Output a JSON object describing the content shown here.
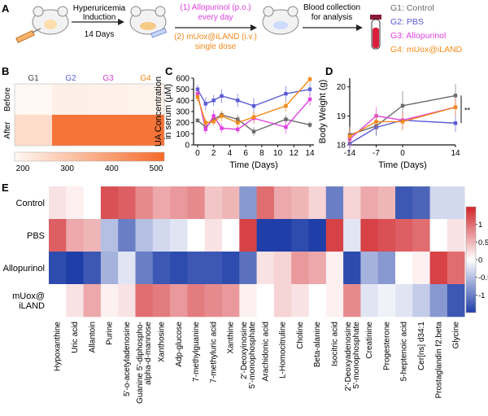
{
  "panel_labels": {
    "a": "A",
    "b": "B",
    "c": "C",
    "d": "D",
    "e": "E"
  },
  "schematic": {
    "step1_line1": "Hyperuricemia",
    "step1_line2": "Induction",
    "step1_days": "14 Days",
    "treat1_line1": "(1) Allopurinol (p.o.)",
    "treat1_line2": "every day",
    "treat2_line1": "(2) mUox@iLAND (i.v.)",
    "treat2_line2": "single dose",
    "blood_line1": "Blood collection",
    "blood_line2": "for analysis",
    "groups": [
      {
        "label": "G1: Control",
        "color": "#6b6b6b"
      },
      {
        "label": "G2: PBS",
        "color": "#5b5bd6"
      },
      {
        "label": "G3: Allopurinol",
        "color": "#e040e0"
      },
      {
        "label": "G4: mUox@iLAND",
        "color": "#f28a1a"
      }
    ],
    "colors": {
      "magenta": "#e040e0",
      "orange": "#f28a1a"
    }
  },
  "chart_data": [
    {
      "panel": "B",
      "type": "heatmap",
      "columns": [
        "G1",
        "G2",
        "G3",
        "G4"
      ],
      "column_colors": [
        "#444444",
        "#5b5bd6",
        "#d13fd1",
        "#f28a1a"
      ],
      "rows": [
        "Before",
        "After"
      ],
      "values": [
        [
          200,
          220,
          215,
          210
        ],
        [
          260,
          480,
          480,
          480
        ]
      ],
      "colorbar": {
        "min": 200,
        "max": 500,
        "ticks": [
          "200",
          "300",
          "400",
          "500"
        ],
        "low_color": "#fff8f3",
        "high_color": "#f56b2a"
      }
    },
    {
      "panel": "C",
      "type": "line",
      "ylabel": "UA Concentration\nin serum (μM)",
      "xlabel": "Time (Days)",
      "xlim": [
        -0.5,
        14.5
      ],
      "ylim": [
        0,
        600
      ],
      "xticks": [
        "0",
        "2",
        "4",
        "6",
        "8",
        "10",
        "12",
        "14"
      ],
      "yticks": [
        "0",
        "100",
        "200",
        "300",
        "400",
        "500",
        "600"
      ],
      "series": [
        {
          "color": "#6b6b6b",
          "x": [
            0,
            1,
            2,
            3,
            5,
            7,
            11,
            14
          ],
          "y": [
            220,
            160,
            230,
            270,
            230,
            120,
            230,
            180
          ],
          "err": [
            20,
            20,
            30,
            30,
            40,
            40,
            40,
            30
          ]
        },
        {
          "color": "#5b5bd6",
          "x": [
            0,
            1,
            2,
            3,
            5,
            7,
            11,
            14
          ],
          "y": [
            500,
            370,
            400,
            440,
            400,
            350,
            460,
            500
          ],
          "err": [
            40,
            60,
            50,
            60,
            60,
            70,
            70,
            60
          ]
        },
        {
          "color": "#e040e0",
          "x": [
            0,
            1,
            2,
            3,
            5,
            7,
            11,
            14
          ],
          "y": [
            460,
            140,
            260,
            150,
            140,
            240,
            160,
            410
          ],
          "err": [
            40,
            40,
            50,
            40,
            40,
            50,
            60,
            60
          ]
        },
        {
          "color": "#f28a1a",
          "x": [
            0,
            1,
            2,
            3,
            5,
            7,
            11,
            14
          ],
          "y": [
            430,
            200,
            210,
            260,
            200,
            250,
            350,
            590
          ],
          "err": [
            40,
            40,
            40,
            50,
            40,
            50,
            50,
            30
          ]
        }
      ]
    },
    {
      "panel": "D",
      "type": "line",
      "ylabel": "Body Weight (g)",
      "xlabel": "Time (Days)",
      "xlim": [
        -14,
        14
      ],
      "ylim": [
        18,
        20.3
      ],
      "xticks": [
        "-14",
        "-7",
        "0",
        "14"
      ],
      "xtick_values": [
        -14,
        -7,
        0,
        14
      ],
      "yticks": [
        "18",
        "19",
        "20"
      ],
      "sig_mark": "**",
      "series": [
        {
          "color": "#6b6b6b",
          "x": [
            -14,
            -7,
            0,
            14
          ],
          "y": [
            18.35,
            18.65,
            19.35,
            19.7
          ],
          "err": [
            0.3,
            0.3,
            0.5,
            0.4
          ]
        },
        {
          "color": "#5b5bd6",
          "x": [
            -14,
            -7,
            0,
            14
          ],
          "y": [
            18.05,
            18.6,
            18.85,
            18.75
          ],
          "err": [
            0.3,
            0.3,
            0.3,
            0.3
          ]
        },
        {
          "color": "#e040e0",
          "x": [
            -14,
            -7,
            0,
            14
          ],
          "y": [
            18.2,
            19.0,
            18.85,
            19.3
          ],
          "err": [
            0.3,
            0.3,
            0.3,
            0.3
          ]
        },
        {
          "color": "#f28a1a",
          "x": [
            -14,
            -7,
            0,
            14
          ],
          "y": [
            18.3,
            18.8,
            18.8,
            19.3
          ],
          "err": [
            0.3,
            0.3,
            0.3,
            0.3
          ]
        }
      ]
    },
    {
      "panel": "E",
      "type": "heatmap",
      "rows": [
        "Control",
        "PBS",
        "Allopurinol",
        "mUox@\niLAND"
      ],
      "columns": [
        "Hypoxanthine",
        "Uric acid",
        "Allantoin",
        "Purine",
        "5'-o-acetyladenosine",
        "Guanine 5'-diphospho-\nalpha-d-mannose",
        "Xanthosine",
        "Adp-glucose",
        "7-methylguanine",
        "7-methyluric acid",
        "Xanthine",
        "2'-Deoxyinosine\n5'-monophosphate",
        "Arachidonic acid",
        "L-Homocitruline",
        "Choline",
        "Beta-alanine",
        "Isocitric acid",
        "2'-Deoxyadenosine\n5'-monophosphate",
        "Creatinine",
        "Progesterone",
        "5-heptenoic acid",
        "Cer[ns] d34:1",
        "Prostaglandin f2.beta",
        "Glycine"
      ],
      "values": [
        [
          0.2,
          0.1,
          0.0,
          1.2,
          1.1,
          0.8,
          0.6,
          0.7,
          0.8,
          0.4,
          0.5,
          -0.8,
          1.0,
          0.6,
          0.5,
          0.3,
          -1.0,
          0.3,
          0.6,
          0.5,
          -1.3,
          -1.2,
          -0.3,
          -0.3
        ],
        [
          1.1,
          0.6,
          0.5,
          -0.5,
          -1.0,
          -0.5,
          -0.3,
          -0.2,
          0.0,
          0.2,
          0.0,
          1.3,
          -1.5,
          -1.5,
          -1.4,
          -1.5,
          1.3,
          -0.2,
          1.3,
          1.2,
          1.1,
          1.0,
          0.0,
          0.2
        ],
        [
          -1.4,
          -1.5,
          -1.3,
          -0.6,
          -0.2,
          -1.0,
          -1.3,
          -1.4,
          -1.3,
          -1.3,
          -1.4,
          -1.1,
          0.2,
          0.3,
          0.7,
          0.6,
          0.1,
          -1.4,
          -0.6,
          -0.8,
          0.0,
          0.1,
          1.3,
          1.0
        ],
        [
          0.0,
          0.2,
          0.6,
          0.1,
          0.2,
          1.0,
          0.9,
          0.7,
          0.9,
          0.8,
          0.7,
          0.1,
          0.0,
          0.3,
          0.2,
          0.0,
          0.1,
          0.8,
          -0.2,
          -0.1,
          -0.2,
          -0.4,
          -0.8,
          -1.3
        ]
      ],
      "colorbar": {
        "ticks": [
          "1",
          "0.5",
          "0",
          "-0.5",
          "-1"
        ],
        "tick_values": [
          1,
          0.5,
          0,
          -0.5,
          -1
        ],
        "min": -1.5,
        "max": 1.5,
        "neg_color": "#1f3ea8",
        "pos_color": "#d0252a"
      }
    }
  ]
}
